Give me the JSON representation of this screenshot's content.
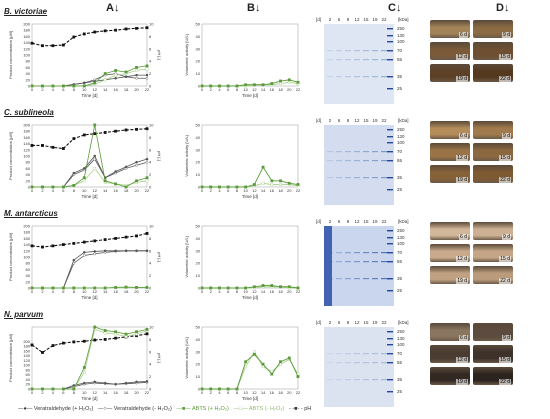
{
  "headers": {
    "a": "A↓",
    "b": "B↓",
    "c": "C↓",
    "d": "D↓"
  },
  "axes": {
    "a_ylabel": "Product concentration [µM]",
    "a_y2label": "pH [-]",
    "a_xlabel": "Time [d]",
    "b_ylabel": "Volumetric activity [U/L]",
    "gel_unit_top": "[kDa]",
    "gel_day_unit": "[d]",
    "gel_days": [
      "2",
      "6",
      "9",
      "12",
      "15",
      "19",
      "22"
    ],
    "markers": [
      "250",
      "130",
      "100",
      "70",
      "55",
      "35",
      "25"
    ],
    "x_ticks": [
      "0",
      "2",
      "4",
      "6",
      "8",
      "10",
      "12",
      "14",
      "16",
      "18",
      "20",
      "22"
    ],
    "a_yticks": [
      "0",
      "20",
      "40",
      "60",
      "80",
      "100",
      "120",
      "140",
      "160",
      "180",
      "200"
    ],
    "a_y2ticks": [
      "0",
      "2",
      "4",
      "6",
      "8",
      "10"
    ],
    "b_yticks": [
      "0",
      "10",
      "20",
      "30",
      "40",
      "50"
    ]
  },
  "rows": [
    {
      "organism": "B. victoriae",
      "van_plus": [
        0,
        0,
        0,
        0,
        5,
        10,
        15,
        20,
        25,
        30,
        35,
        35
      ],
      "van_minus": [
        0,
        0,
        0,
        0,
        5,
        10,
        20,
        35,
        40,
        30,
        25,
        25
      ],
      "abts_plus": [
        0,
        0,
        0,
        0,
        0,
        0,
        10,
        40,
        50,
        45,
        60,
        65
      ],
      "abts_minus": [
        0,
        0,
        0,
        0,
        0,
        0,
        5,
        20,
        35,
        40,
        50,
        55
      ],
      "ph": [
        6.9,
        6.5,
        6.5,
        6.6,
        7.9,
        8.4,
        8.7,
        8.9,
        9.0,
        9.2,
        9.3,
        9.4
      ],
      "b_plus": [
        0,
        0,
        0,
        0,
        0,
        1,
        1,
        1,
        2,
        4,
        5,
        3
      ],
      "b_minus": [
        0,
        0,
        0,
        0,
        0,
        0,
        1,
        1,
        1,
        2,
        3,
        2
      ],
      "photo_colors": [
        "#a28458",
        "#8a6b44",
        "#7a5a38",
        "#6e4f31",
        "#5d4127",
        "#54391f"
      ],
      "gel_bg": "#dde6f2",
      "gel_band": "#8ea6cc"
    },
    {
      "organism": "C. sublineola",
      "van_plus": [
        0,
        0,
        0,
        0,
        45,
        60,
        100,
        30,
        50,
        65,
        80,
        90
      ],
      "van_minus": [
        0,
        0,
        0,
        0,
        40,
        55,
        90,
        30,
        45,
        60,
        70,
        80
      ],
      "abts_plus": [
        0,
        0,
        0,
        0,
        5,
        30,
        200,
        20,
        10,
        0,
        20,
        30
      ],
      "abts_minus": [
        0,
        0,
        0,
        0,
        5,
        20,
        60,
        15,
        10,
        5,
        15,
        20
      ],
      "ph": [
        6.7,
        6.7,
        6.4,
        6.2,
        7.8,
        8.4,
        8.6,
        8.8,
        9.0,
        9.2,
        9.3,
        9.4
      ],
      "b_plus": [
        0,
        0,
        0,
        0,
        0,
        0,
        2,
        16,
        5,
        5,
        3,
        2
      ],
      "b_minus": [
        0,
        0,
        0,
        0,
        0,
        0,
        1,
        3,
        2,
        2,
        2,
        1
      ],
      "photo_colors": [
        "#b48c5a",
        "#a07a4c",
        "#9a7446",
        "#8c6840",
        "#866238",
        "#7e5a33"
      ],
      "gel_bg": "#d3ddef",
      "gel_band": "#6f8cc0"
    },
    {
      "organism": "M. antarcticus",
      "van_plus": [
        0,
        0,
        0,
        0,
        90,
        115,
        118,
        120,
        120,
        120,
        120,
        120
      ],
      "van_minus": [
        0,
        0,
        0,
        0,
        80,
        105,
        110,
        115,
        118,
        120,
        120,
        120
      ],
      "abts_plus": [
        0,
        0,
        0,
        0,
        0,
        0,
        0,
        0,
        2,
        3,
        2,
        2
      ],
      "abts_minus": [
        0,
        0,
        0,
        0,
        0,
        0,
        0,
        0,
        1,
        1,
        1,
        1
      ],
      "ph": [
        6.8,
        6.6,
        6.8,
        7.0,
        7.2,
        7.4,
        7.6,
        7.8,
        8.0,
        8.2,
        8.4,
        8.8
      ],
      "b_plus": [
        0,
        0,
        0,
        0,
        0,
        0,
        1,
        2,
        2,
        1,
        1,
        0
      ],
      "b_minus": [
        0,
        0,
        0,
        0,
        0,
        0,
        0,
        1,
        1,
        1,
        0,
        0
      ],
      "photo_colors": [
        "#d3b79a",
        "#cdb093",
        "#c9aa8c",
        "#c4a686",
        "#c0a181",
        "#ba9b7c"
      ],
      "gel_bg": "#c9d6ee",
      "gel_band": "#3f63ad"
    },
    {
      "organism": "N. parvum",
      "van_plus": [
        0,
        0,
        0,
        0,
        15,
        25,
        30,
        25,
        20,
        25,
        30,
        32
      ],
      "van_minus": [
        0,
        0,
        0,
        0,
        10,
        20,
        25,
        22,
        20,
        22,
        25,
        28
      ],
      "abts_plus": [
        0,
        0,
        0,
        0,
        0,
        90,
        260,
        245,
        240,
        230,
        240,
        250
      ],
      "abts_minus": [
        0,
        0,
        0,
        0,
        0,
        70,
        250,
        235,
        230,
        220,
        230,
        245
      ],
      "ph": [
        7.1,
        5.9,
        7.0,
        7.4,
        7.6,
        7.7,
        7.9,
        8.0,
        8.2,
        8.4,
        8.6,
        8.9
      ],
      "b_plus": [
        0,
        0,
        0,
        0,
        0,
        22,
        28,
        20,
        12,
        22,
        25,
        10
      ],
      "b_minus": [
        0,
        0,
        0,
        0,
        0,
        18,
        30,
        18,
        14,
        20,
        24,
        12
      ],
      "photo_colors": [
        "#8a7560",
        "#5c4b3e",
        "#4a3c31",
        "#3d3129",
        "#332923",
        "#2b231e"
      ],
      "gel_bg": "#dbe3f1",
      "gel_band": "#9fb1d6"
    }
  ],
  "photo_labels": [
    "6 d",
    "9 d",
    "12 d",
    "15 d",
    "19 d",
    "22 d"
  ],
  "legend": {
    "van_plus": "Veratraldehyde (+ H₂O₂)",
    "van_minus": "Veratraldehyde (- H₂O₂)",
    "abts_plus": "ABTS (+ H₂O₂)",
    "abts_minus": "ABTS (- H₂O₂)",
    "ph": "pH"
  },
  "colors": {
    "van": "#555555",
    "abts_plus": "#5a9a3a",
    "abts_minus": "#a8d08a",
    "ph": "#111111"
  }
}
